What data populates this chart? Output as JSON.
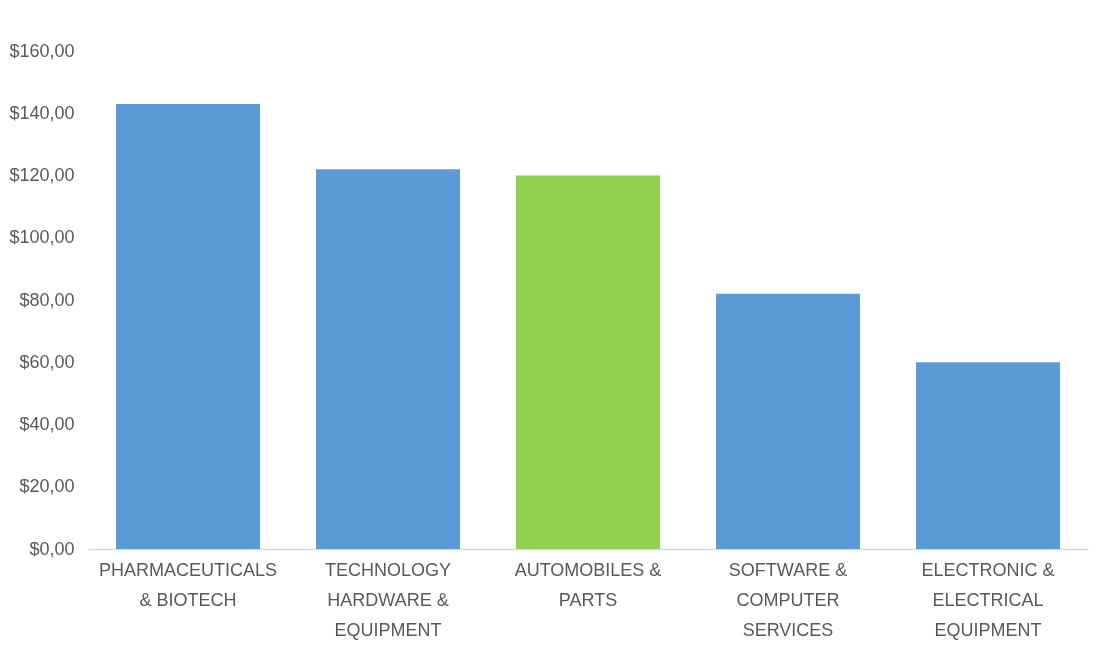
{
  "chart_data": {
    "type": "bar",
    "categories": [
      "PHARMACEUTICALS & BIOTECH",
      "TECHNOLOGY HARDWARE & EQUIPMENT",
      "AUTOMOBILES & PARTS",
      "SOFTWARE & COMPUTER SERVICES",
      "ELECTRONIC & ELECTRICAL EQUIPMENT"
    ],
    "values": [
      143,
      122,
      120,
      82,
      60
    ],
    "colors": [
      "#5b9bd5",
      "#5b9bd5",
      "#92d050",
      "#5b9bd5",
      "#5b9bd5"
    ],
    "ylim": [
      0,
      160
    ],
    "yticks": [
      {
        "value": 0,
        "label": "$0,00"
      },
      {
        "value": 20,
        "label": "$20,00"
      },
      {
        "value": 40,
        "label": "$40,00"
      },
      {
        "value": 60,
        "label": "$60,00"
      },
      {
        "value": 80,
        "label": "$80,00"
      },
      {
        "value": 100,
        "label": "$100,00"
      },
      {
        "value": 120,
        "label": "$120,00"
      },
      {
        "value": 140,
        "label": "$140,00"
      },
      {
        "value": 160,
        "label": "$160,00"
      }
    ],
    "grid": false
  }
}
